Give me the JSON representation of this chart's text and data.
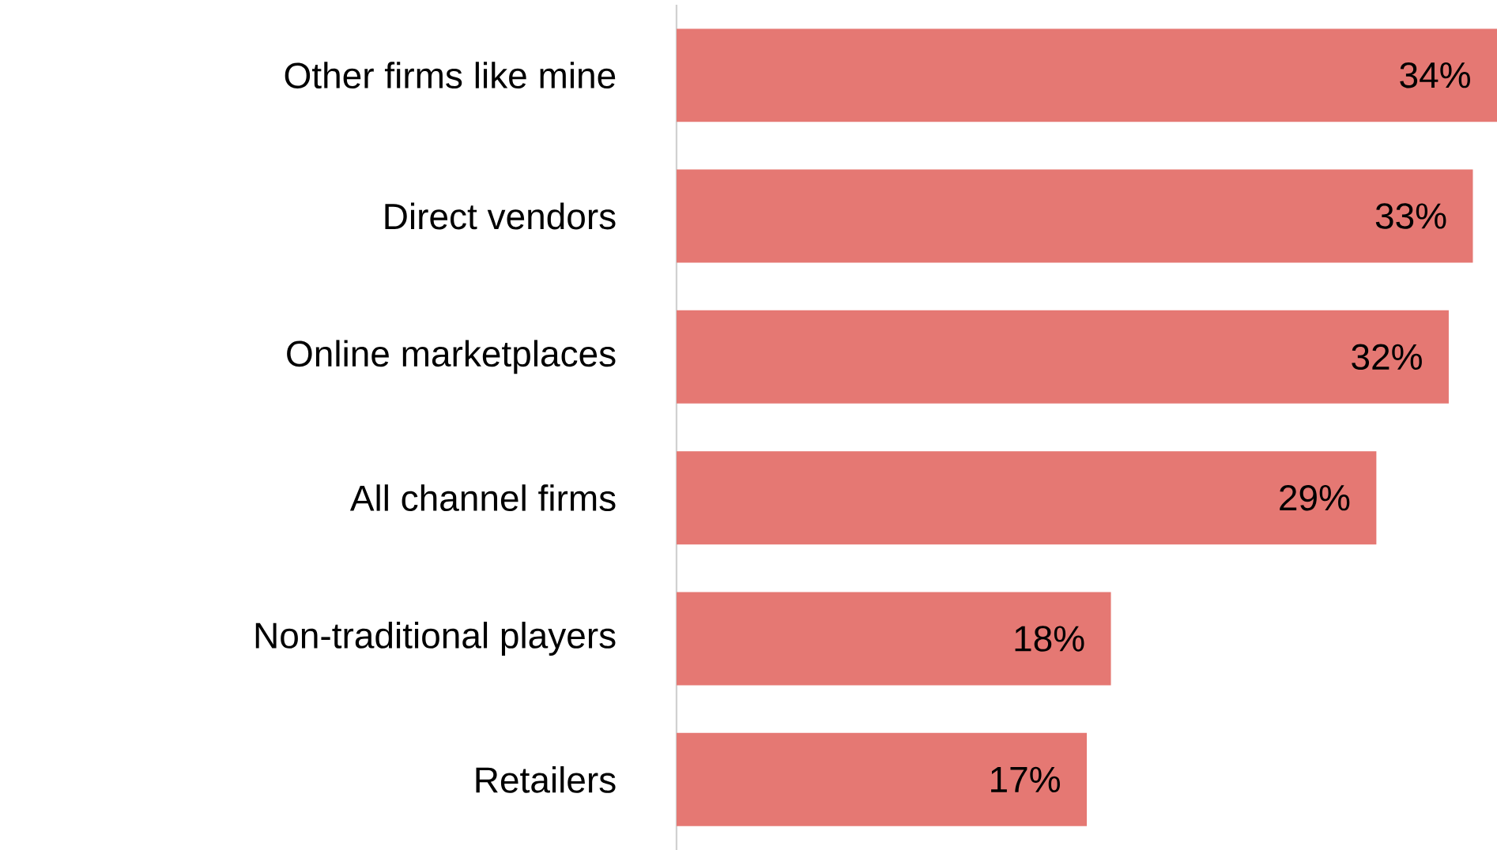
{
  "chart_data": {
    "type": "bar",
    "orientation": "horizontal",
    "categories": [
      "Other firms like mine",
      "Direct vendors",
      "Online marketplaces",
      "All channel firms",
      "Non-traditional players",
      "Retailers"
    ],
    "values": [
      34,
      33,
      32,
      29,
      18,
      17
    ],
    "value_labels": [
      "34%",
      "33%",
      "32%",
      "29%",
      "18%",
      "17%"
    ],
    "color": "#e57873"
  }
}
